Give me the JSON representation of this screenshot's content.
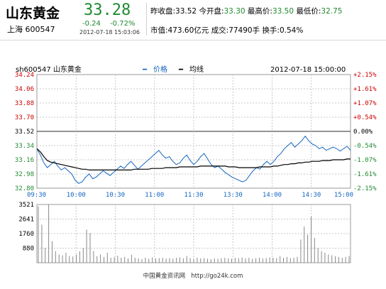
{
  "header": {
    "name": "山东黄金",
    "exchange": "上海",
    "code": "600547",
    "price": "33.28",
    "change": "-0.24",
    "change_pct": "-0.72%",
    "timestamp": "2012-07-18 15:03:06",
    "prev_close_label": "昨收盘:",
    "prev_close": "33.52",
    "open_label": "今开盘:",
    "open": "33.30",
    "high_label": "最高价:",
    "high": "33.50",
    "low_label": "最低价:",
    "low": "32.75",
    "mktcap_label": "市值:",
    "mktcap": "473.60亿元",
    "volume_label": "成交:",
    "volume": "77490手",
    "turnover_label": "换手:",
    "turnover": "0.54%"
  },
  "colors": {
    "price_line": "#1565c0",
    "avg_line": "#000000",
    "up": "#cc0000",
    "down": "#1f8a2f",
    "grid": "#c8c8c8",
    "volume": "#888888"
  },
  "chart_data": [
    {
      "type": "line",
      "title": "sh600547  山东黄金",
      "datetime": "2012-07-18 15:00:00",
      "legend": [
        "价格",
        "均线"
      ],
      "prev_close": 33.52,
      "ylim": [
        32.8,
        34.24
      ],
      "y_ticks": [
        "34.24",
        "34.06",
        "33.88",
        "33.70",
        "33.52",
        "33.34",
        "33.16",
        "32.98",
        "32.80"
      ],
      "y_pct_ticks": [
        "+2.15%",
        "+1.61%",
        "+1.07%",
        "+0.54%",
        "0.00%",
        "-0.54%",
        "-1.07%",
        "-1.61%",
        "-2.15%"
      ],
      "x_ticks": [
        "09:30",
        "10:00",
        "10:30",
        "11:00",
        "11:30",
        "13:30",
        "14:00",
        "14:30",
        "15:00"
      ],
      "series": [
        {
          "name": "价格",
          "values": [
            33.3,
            33.22,
            33.12,
            33.06,
            33.1,
            33.14,
            33.08,
            33.03,
            33.06,
            33.02,
            32.98,
            32.9,
            32.86,
            32.88,
            32.94,
            32.98,
            32.92,
            32.94,
            32.98,
            33.02,
            32.99,
            32.96,
            33.0,
            33.04,
            33.08,
            33.05,
            33.1,
            33.14,
            33.09,
            33.04,
            33.08,
            33.12,
            33.16,
            33.2,
            33.24,
            33.28,
            33.22,
            33.18,
            33.2,
            33.14,
            33.1,
            33.12,
            33.18,
            33.22,
            33.15,
            33.1,
            33.14,
            33.2,
            33.24,
            33.17,
            33.1,
            33.06,
            33.08,
            33.04,
            33.0,
            32.97,
            32.94,
            32.92,
            32.9,
            32.88,
            32.9,
            32.96,
            33.02,
            33.06,
            33.04,
            33.1,
            33.14,
            33.1,
            33.14,
            33.2,
            33.24,
            33.3,
            33.34,
            33.38,
            33.32,
            33.36,
            33.4,
            33.46,
            33.4,
            33.36,
            33.34,
            33.3,
            33.32,
            33.28,
            33.3,
            33.32,
            33.3,
            33.27,
            33.3,
            33.33,
            33.28
          ]
        },
        {
          "name": "均线",
          "values": [
            33.3,
            33.26,
            33.2,
            33.15,
            33.13,
            33.12,
            33.11,
            33.1,
            33.09,
            33.08,
            33.07,
            33.06,
            33.05,
            33.04,
            33.04,
            33.03,
            33.03,
            33.03,
            33.03,
            33.03,
            33.03,
            33.03,
            33.03,
            33.03,
            33.03,
            33.03,
            33.03,
            33.03,
            33.04,
            33.04,
            33.04,
            33.04,
            33.04,
            33.05,
            33.05,
            33.05,
            33.05,
            33.06,
            33.06,
            33.06,
            33.06,
            33.07,
            33.07,
            33.07,
            33.07,
            33.07,
            33.07,
            33.08,
            33.08,
            33.08,
            33.08,
            33.08,
            33.08,
            33.08,
            33.08,
            33.07,
            33.07,
            33.07,
            33.06,
            33.06,
            33.06,
            33.06,
            33.06,
            33.06,
            33.07,
            33.07,
            33.07,
            33.07,
            33.08,
            33.08,
            33.09,
            33.1,
            33.1,
            33.11,
            33.11,
            33.12,
            33.12,
            33.13,
            33.13,
            33.14,
            33.14,
            33.14,
            33.15,
            33.15,
            33.15,
            33.16,
            33.16,
            33.16,
            33.16,
            33.17,
            33.17
          ]
        }
      ]
    },
    {
      "type": "bar",
      "ylim": [
        0,
        3521
      ],
      "y_ticks": [
        "3521",
        "2641",
        "1760",
        "880"
      ],
      "values": [
        3400,
        2300,
        900,
        3521,
        1300,
        700,
        500,
        450,
        600,
        400,
        380,
        500,
        700,
        900,
        2000,
        1800,
        700,
        400,
        500,
        350,
        600,
        300,
        350,
        420,
        300,
        350,
        260,
        480,
        300,
        260,
        220,
        300,
        240,
        320,
        260,
        280,
        300,
        250,
        280,
        240,
        300,
        320,
        260,
        400,
        280,
        240,
        300,
        260,
        280,
        240,
        220,
        260,
        240,
        280,
        300,
        260,
        240,
        300,
        280,
        320,
        260,
        300,
        240,
        280,
        300,
        260,
        280,
        320,
        300,
        280,
        400,
        300,
        350,
        280,
        300,
        350,
        1400,
        2200,
        1700,
        2800,
        1500,
        900,
        700,
        600,
        500,
        450,
        400,
        350,
        300,
        350,
        400
      ]
    }
  ],
  "footer": {
    "site_name": "中国黄金资讯网",
    "url": "http://go24k.com"
  }
}
